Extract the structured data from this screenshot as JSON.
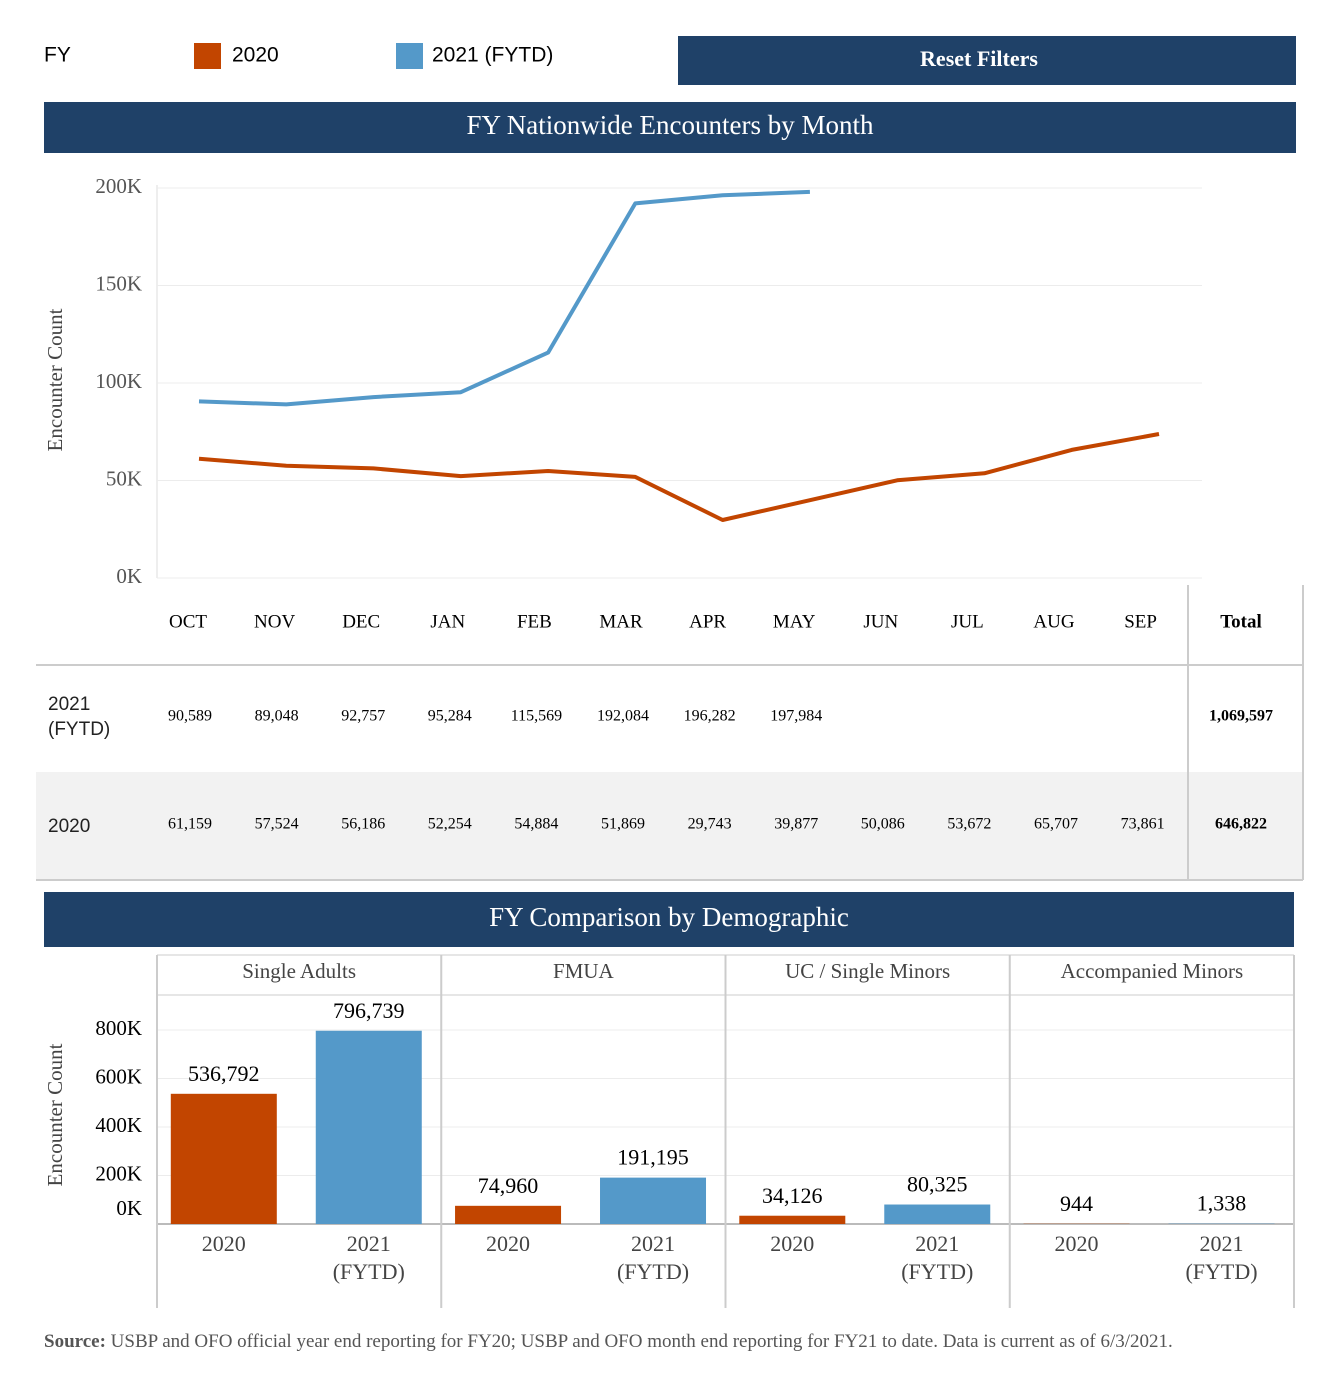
{
  "filters": {
    "label": "FY",
    "button": "Reset Filters"
  },
  "chart_data": [
    {
      "type": "line",
      "title": "FY Nationwide Encounters by Month",
      "y_label": "Encounter Count",
      "categories": [
        "OCT",
        "NOV",
        "DEC",
        "JAN",
        "FEB",
        "MAR",
        "APR",
        "MAY",
        "JUN",
        "JUL",
        "AUG",
        "SEP"
      ],
      "series": [
        {
          "name": "2020",
          "color": "#c24500",
          "values": [
            61159,
            57524,
            56186,
            52254,
            54884,
            51869,
            29743,
            39877,
            50086,
            53672,
            65707,
            73861
          ],
          "value_labels": [
            "61,159",
            "57,524",
            "56,186",
            "52,254",
            "54,884",
            "51,869",
            "29,743",
            "39,877",
            "50,086",
            "53,672",
            "65,707",
            "73,861"
          ]
        },
        {
          "name": "2021 (FYTD)",
          "color": "#5499c9",
          "values": [
            90589,
            89048,
            92757,
            95284,
            115569,
            192084,
            196282,
            197984,
            null,
            null,
            null,
            null
          ],
          "value_labels": [
            "90,589",
            "89,048",
            "92,757",
            "95,284",
            "115,569",
            "192,084",
            "196,282",
            "197,984",
            null,
            null,
            null,
            null
          ]
        }
      ],
      "ylim": [
        0,
        200000
      ],
      "yticks": [
        {
          "value": 0,
          "label": "0K"
        },
        {
          "value": 50000,
          "label": "50K"
        },
        {
          "value": 100000,
          "label": "100K"
        },
        {
          "value": 150000,
          "label": "150K"
        },
        {
          "value": 200000,
          "label": "200K"
        }
      ],
      "grid": true
    },
    {
      "type": "bar",
      "title": "FY Comparison by Demographic",
      "y_label": "Encounter Count",
      "categories": [
        "Single Adults",
        "FMUA",
        "UC / Single Minors",
        "Accompanied Minors"
      ],
      "series": [
        {
          "name": "2020",
          "color": "#c24500",
          "values": [
            536792,
            74960,
            34126,
            944
          ],
          "value_labels": [
            "536,792",
            "74,960",
            "34,126",
            "944"
          ]
        },
        {
          "name": "2021 (FYTD)",
          "color": "#5499c9",
          "values": [
            796739,
            191195,
            80325,
            1338
          ],
          "value_labels": [
            "796,739",
            "191,195",
            "80,325",
            "1,338"
          ]
        }
      ],
      "ylim": [
        0,
        940000
      ],
      "yticks": [
        {
          "value": 0,
          "label": "0K"
        },
        {
          "value": 200000,
          "label": "200K"
        },
        {
          "value": 400000,
          "label": "400K"
        },
        {
          "value": 600000,
          "label": "600K"
        },
        {
          "value": 800000,
          "label": "800K"
        }
      ],
      "grid": true
    }
  ],
  "table": {
    "total_header": "Total",
    "totals": [
      "1,069,597",
      "646,822"
    ]
  },
  "source": {
    "label": "Source:",
    "text": "USBP and OFO official year end reporting for FY20; USBP and OFO month end reporting for FY21 to date. Data is current as of 6/3/2021."
  }
}
